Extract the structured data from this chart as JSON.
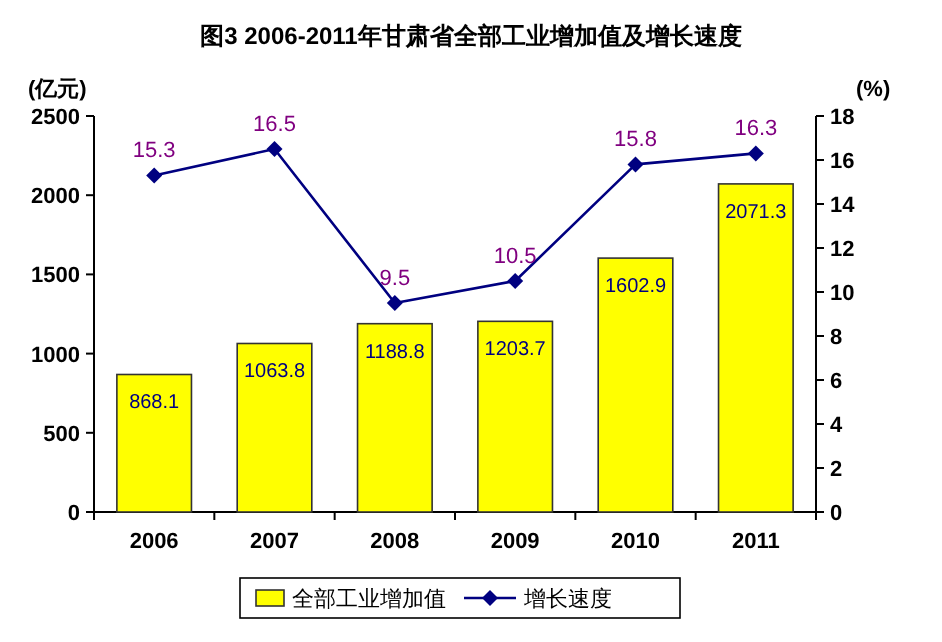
{
  "chart_data": {
    "type": "bar",
    "title": "图3  2006-2011年甘肃省全部工业增加值及增长速度",
    "ylabel": "(亿元)",
    "y2label": "(%)",
    "categories": [
      "2006",
      "2007",
      "2008",
      "2009",
      "2010",
      "2011"
    ],
    "series": [
      {
        "name": "全部工业增加值",
        "color": "#ffff00",
        "values": [
          868.1,
          1063.8,
          1188.8,
          1203.7,
          1602.9,
          2071.3
        ]
      },
      {
        "name": "增长速度",
        "type": "line",
        "axis": "y2",
        "color": "#000080",
        "marker": "diamond",
        "values": [
          15.3,
          16.5,
          9.5,
          10.5,
          15.8,
          16.3
        ]
      }
    ],
    "ylim": [
      0,
      2500
    ],
    "yticks": [
      0,
      500,
      1000,
      1500,
      2000,
      2500
    ],
    "y2lim": [
      0,
      18
    ],
    "y2ticks": [
      0,
      2,
      4,
      6,
      8,
      10,
      12,
      14,
      16,
      18
    ],
    "data_labels": true,
    "legend": "bottom",
    "grid": false
  }
}
